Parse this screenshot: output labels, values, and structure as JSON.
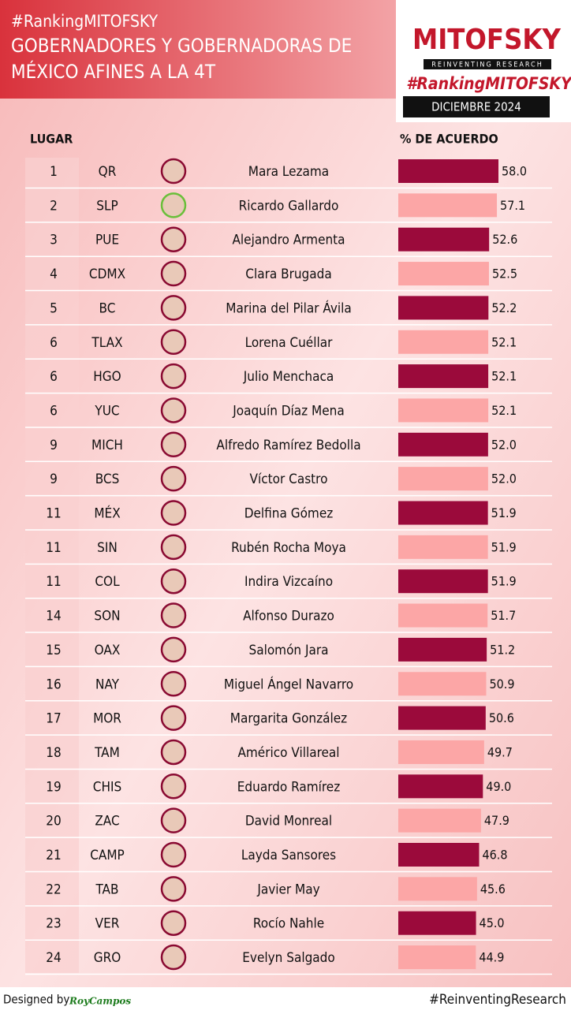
{
  "chart_data": {
    "type": "bar",
    "hashtag": "#RankingMITOFSKY",
    "title": "GOBERNADORES Y GOBERNADORAS DE",
    "subtitle": "MÉXICO AFINES A LA 4T",
    "logo": "MITOFSKY",
    "logo_tagline": "REINVENTING RESEARCH",
    "logo_hashtag": "#RankingMITOFSKY",
    "date": "DICIEMBRE 2024",
    "rank_header": "LUGAR",
    "value_header": "% DE ACUERDO",
    "ranks": [
      1,
      2,
      3,
      4,
      5,
      6,
      6,
      6,
      9,
      9,
      11,
      11,
      11,
      14,
      15,
      16,
      17,
      18,
      19,
      20,
      21,
      22,
      23,
      24
    ],
    "states": [
      "QR",
      "SLP",
      "PUE",
      "CDMX",
      "BC",
      "TLAX",
      "HGO",
      "YUC",
      "MICH",
      "BCS",
      "MÉX",
      "SIN",
      "COL",
      "SON",
      "OAX",
      "NAY",
      "MOR",
      "TAM",
      "CHIS",
      "ZAC",
      "CAMP",
      "TAB",
      "VER",
      "GRO"
    ],
    "categories": [
      "Mara Lezama",
      "Ricardo Gallardo",
      "Alejandro Armenta",
      "Clara Brugada",
      "Marina del Pilar Ávila",
      "Lorena Cuéllar",
      "Julio Menchaca",
      "Joaquín Díaz Mena",
      "Alfredo Ramírez Bedolla",
      "Víctor Castro",
      "Delfina Gómez",
      "Rubén Rocha Moya",
      "Indira Vizcaíno",
      "Alfonso Durazo",
      "Salomón Jara",
      "Miguel Ángel Navarro",
      "Margarita González",
      "Américo Villareal",
      "Eduardo Ramírez",
      "David Monreal",
      "Layda Sansores",
      "Javier May",
      "Rocío Nahle",
      "Evelyn Salgado"
    ],
    "values": [
      58.0,
      57.1,
      52.6,
      52.5,
      52.2,
      52.1,
      52.1,
      52.1,
      52.0,
      52.0,
      51.9,
      51.9,
      51.9,
      51.7,
      51.2,
      50.9,
      50.6,
      49.7,
      49.0,
      47.9,
      46.8,
      45.6,
      45.0,
      44.9
    ],
    "value_labels": [
      "58.0",
      "57.1",
      "52.6",
      "52.5",
      "52.2",
      "52.1",
      "52.1",
      "52.1",
      "52.0",
      "52.0",
      "51.9",
      "51.9",
      "51.9",
      "51.7",
      "51.2",
      "50.9",
      "50.6",
      "49.7",
      "49.0",
      "47.9",
      "46.8",
      "45.6",
      "45.0",
      "44.9"
    ],
    "colors": [
      "#9b0a3b",
      "#fca6a6"
    ],
    "footer_left": "Designed by",
    "footer_brand": "RoyCampos",
    "footer_right": "#ReinventingResearch"
  }
}
